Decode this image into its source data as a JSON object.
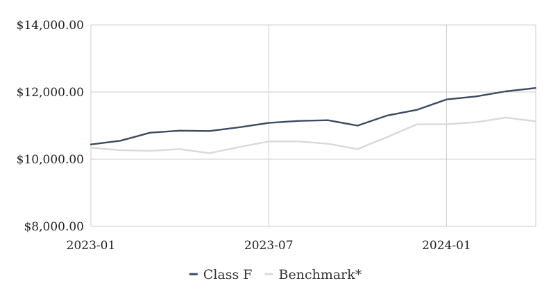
{
  "chart_data": {
    "type": "line",
    "x": [
      "2023-01",
      "2023-02",
      "2023-03",
      "2023-04",
      "2023-05",
      "2023-06",
      "2023-07",
      "2023-08",
      "2023-09",
      "2023-10",
      "2023-11",
      "2023-12",
      "2024-01",
      "2024-02",
      "2024-03",
      "2024-04"
    ],
    "x_tick_labels": [
      "2023-01",
      "2023-07",
      "2024-01"
    ],
    "y_tick_labels": [
      "$14,000.00",
      "$12,000.00",
      "$10,000.00",
      "$8,000.00"
    ],
    "y_ticks": [
      14000,
      12000,
      10000,
      8000
    ],
    "ylim": [
      8000,
      14000
    ],
    "grid": true,
    "legend_position": "bottom-center",
    "series": [
      {
        "name": "Class F",
        "color": "#3c4a60",
        "values": [
          10440,
          10550,
          10790,
          10850,
          10840,
          10950,
          11080,
          11140,
          11160,
          11000,
          11300,
          11470,
          11780,
          11870,
          12020,
          12120
        ]
      },
      {
        "name": "Benchmark*",
        "color": "#d9d9d9",
        "values": [
          10340,
          10270,
          10250,
          10300,
          10180,
          10360,
          10530,
          10530,
          10460,
          10300,
          10660,
          11040,
          11040,
          11100,
          11240,
          11130
        ]
      }
    ]
  }
}
